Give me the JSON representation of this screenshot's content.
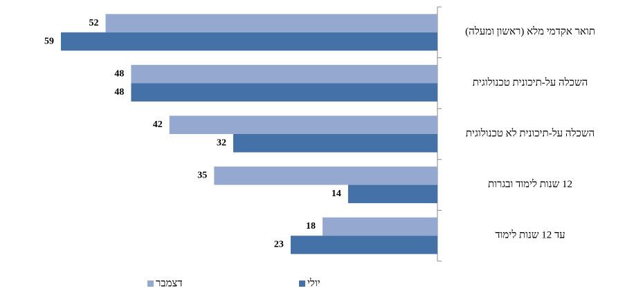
{
  "chart_data": {
    "type": "bar",
    "orientation": "horizontal",
    "categories": [
      "תואר אקדמי מלא (ראשון ומעלה)",
      "השכלה על-תיכונית טכנולוגית",
      "השכלה על-תיכונית לא טכנולוגית",
      "12 שנות לימוד ובגרות",
      "עד 12 שנות לימוד"
    ],
    "series": [
      {
        "name": "דצמבר",
        "color": "#95a9d0",
        "values": [
          52,
          48,
          42,
          35,
          18
        ]
      },
      {
        "name": "יולי",
        "color": "#4471a8",
        "values": [
          59,
          48,
          32,
          14,
          23
        ]
      }
    ]
  }
}
